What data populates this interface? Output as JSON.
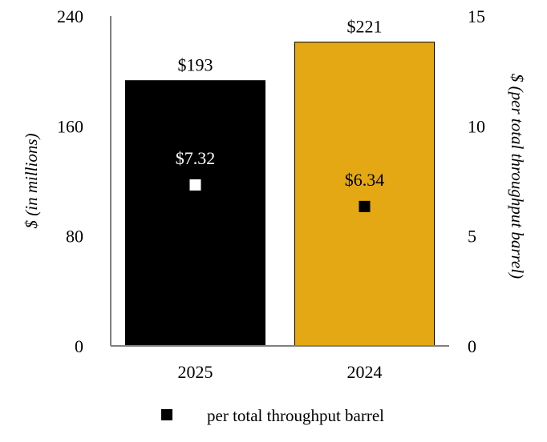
{
  "chart_data": {
    "type": "bar",
    "categories": [
      "2025",
      "2024"
    ],
    "series": [
      {
        "values": [
          193,
          221
        ],
        "labels": [
          "$193",
          "$221"
        ],
        "axis": "left",
        "colors": [
          "#000000",
          "#E3A814"
        ]
      },
      {
        "name": "per total throughput barrel",
        "type": "scatter",
        "values": [
          7.32,
          6.34
        ],
        "labels": [
          "$7.32",
          "$6.34"
        ],
        "axis": "right",
        "marker_colors": [
          "#FFFFFF",
          "#000000"
        ],
        "label_colors": [
          "#FFFFFF",
          "#000000"
        ]
      }
    ],
    "ylabel": "$ (in millions)",
    "ylabel_right": "$ (per total throughput barrel)",
    "ylim": [
      0,
      240
    ],
    "ylim_right": [
      0,
      15
    ],
    "yticks": [
      "0",
      "80",
      "160",
      "240"
    ],
    "yticks_right": [
      "0",
      "5",
      "10",
      "15"
    ],
    "grid": false,
    "legend": {
      "position": "bottom",
      "entries": [
        {
          "label": "per total throughput barrel",
          "marker_color": "#000000"
        }
      ]
    }
  }
}
